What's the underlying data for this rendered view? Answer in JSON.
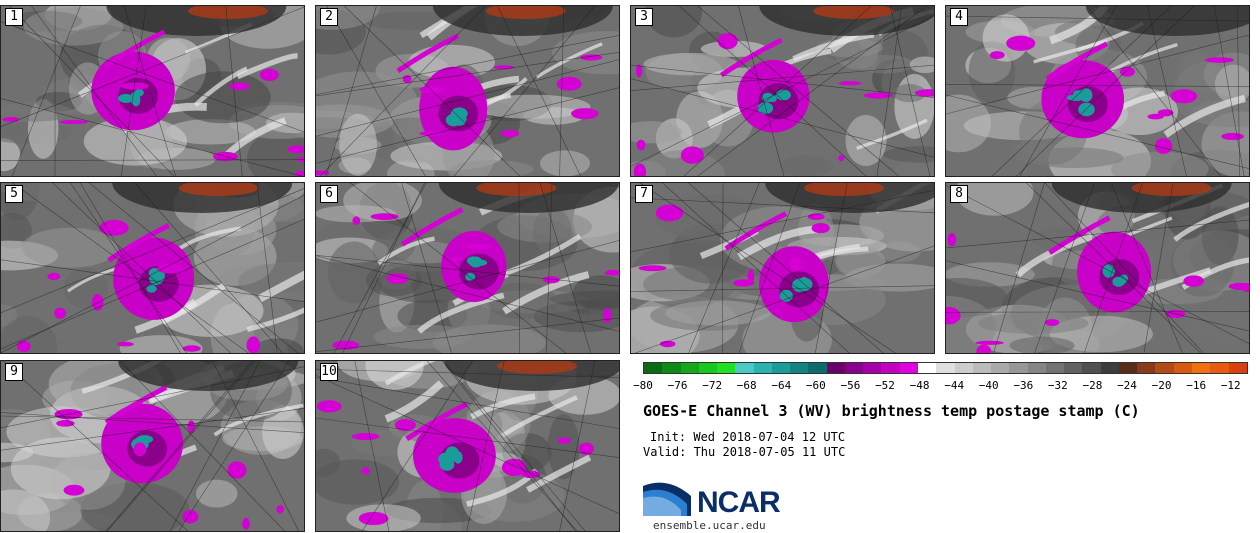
{
  "panels": [
    {
      "number": "1"
    },
    {
      "number": "2"
    },
    {
      "number": "3"
    },
    {
      "number": "4"
    },
    {
      "number": "5"
    },
    {
      "number": "6"
    },
    {
      "number": "7"
    },
    {
      "number": "8"
    },
    {
      "number": "9"
    },
    {
      "number": "10"
    }
  ],
  "colorbar": {
    "colors": [
      "#0b6b14",
      "#0e8a16",
      "#12a818",
      "#19c81e",
      "#20e024",
      "#4cc9c4",
      "#2bb3b0",
      "#1a9c9a",
      "#138482",
      "#0c6c6b",
      "#6b006b",
      "#8a008a",
      "#a800a8",
      "#c400c4",
      "#e000e0",
      "#ffffff",
      "#e0e0e0",
      "#cdcdcd",
      "#bbbbbb",
      "#a9a9a9",
      "#979797",
      "#858585",
      "#737373",
      "#616161",
      "#4f4f4f",
      "#3d3d3d",
      "#5a2a1a",
      "#8a3a1a",
      "#b54a14",
      "#d85a10",
      "#f07010",
      "#e85a10",
      "#d84010"
    ],
    "tick_labels": [
      "−80",
      "−76",
      "−72",
      "−68",
      "−64",
      "−60",
      "−56",
      "−52",
      "−48",
      "−44",
      "−40",
      "−36",
      "−32",
      "−28",
      "−24",
      "−20",
      "−16",
      "−12"
    ],
    "min": -80,
    "max": -10
  },
  "title": "GOES-E Channel 3 (WV) brightness temp postage stamp (C)",
  "init": "Init: Wed 2018-07-04 12 UTC",
  "valid": "Valid: Thu 2018-07-05 11 UTC",
  "logo_text": "NCAR",
  "site": "ensemble.ucar.edu"
}
